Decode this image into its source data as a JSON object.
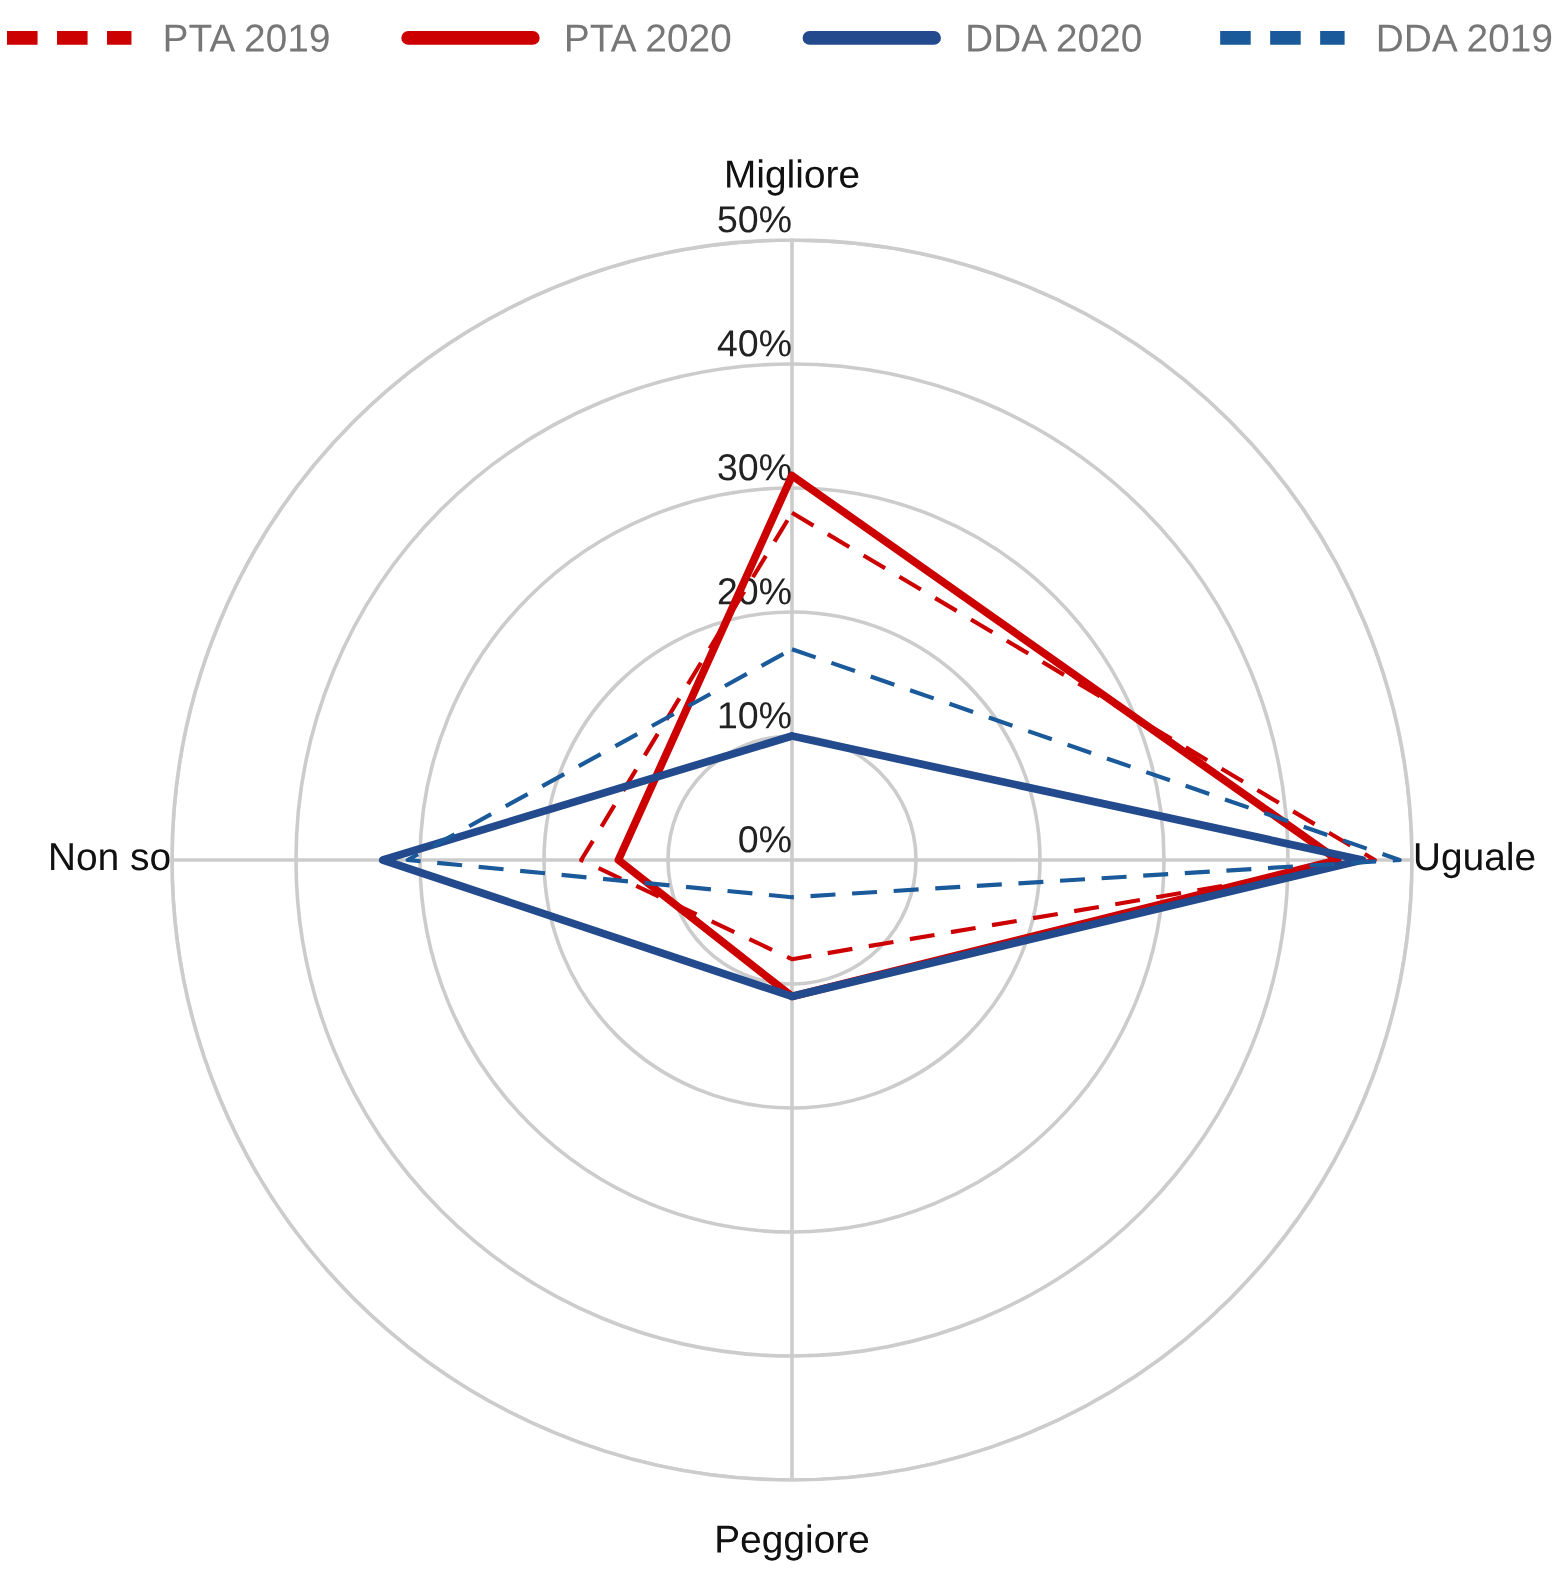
{
  "chart_data": {
    "type": "radar",
    "categories": [
      "Migliore",
      "Uguale",
      "Peggiore",
      "Non so"
    ],
    "series": [
      {
        "name": "PTA 2019",
        "color": "#cc0000",
        "line_style": "dashed",
        "values": [
          28,
          47,
          8,
          17
        ]
      },
      {
        "name": "PTA 2020",
        "color": "#cc0000",
        "line_style": "solid",
        "values": [
          31,
          44,
          11,
          14
        ]
      },
      {
        "name": "DDA 2020",
        "color": "#234a8c",
        "line_style": "solid",
        "values": [
          10,
          46,
          11,
          33
        ]
      },
      {
        "name": "DDA 2019",
        "color": "#1a5a9a",
        "line_style": "dashed",
        "values": [
          17,
          49,
          3,
          31
        ]
      }
    ],
    "ylim": [
      0,
      50
    ],
    "yticks": [
      {
        "value": 0,
        "label": "0%"
      },
      {
        "value": 10,
        "label": "10%"
      },
      {
        "value": 20,
        "label": "20%"
      },
      {
        "value": 30,
        "label": "30%"
      },
      {
        "value": 40,
        "label": "40%"
      },
      {
        "value": 50,
        "label": "50%"
      }
    ],
    "grid": true,
    "legend": "top",
    "marker": "none"
  }
}
